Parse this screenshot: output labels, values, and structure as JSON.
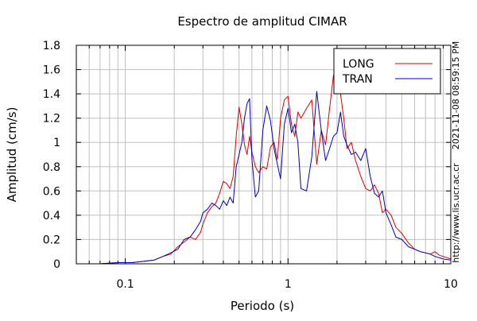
{
  "chart_data": {
    "type": "line",
    "title": "Espectro de amplitud CIMAR",
    "xlabel": "Periodo (s)",
    "ylabel": "Amplitud (cm/s)",
    "x_scale": "log",
    "xlim": [
      0.05,
      10
    ],
    "ylim": [
      0,
      1.8
    ],
    "x_ticks": [
      {
        "value": 0.1,
        "label": "0.1"
      },
      {
        "value": 1,
        "label": "1"
      },
      {
        "value": 10,
        "label": "10"
      }
    ],
    "y_ticks": [
      {
        "value": 0,
        "label": "0"
      },
      {
        "value": 0.2,
        "label": "0.2"
      },
      {
        "value": 0.4,
        "label": "0.4"
      },
      {
        "value": 0.6,
        "label": "0.6"
      },
      {
        "value": 0.8,
        "label": "0.8"
      },
      {
        "value": 1.0,
        "label": "1"
      },
      {
        "value": 1.2,
        "label": "1.2"
      },
      {
        "value": 1.4,
        "label": "1.4"
      },
      {
        "value": 1.6,
        "label": "1.6"
      },
      {
        "value": 1.8,
        "label": "1.8"
      }
    ],
    "grid": true,
    "legend_position": "top-right",
    "side_texts": [
      "2021-11-08 08:59:15 PM",
      "http://www.lis.ucr.ac.cr"
    ],
    "series": [
      {
        "name": "LONG",
        "color": "#e00000",
        "points": [
          [
            0.05,
            0.0
          ],
          [
            0.07,
            0.0
          ],
          [
            0.09,
            0.01
          ],
          [
            0.11,
            0.01
          ],
          [
            0.13,
            0.02
          ],
          [
            0.15,
            0.03
          ],
          [
            0.17,
            0.06
          ],
          [
            0.19,
            0.08
          ],
          [
            0.21,
            0.14
          ],
          [
            0.23,
            0.18
          ],
          [
            0.25,
            0.22
          ],
          [
            0.27,
            0.2
          ],
          [
            0.29,
            0.26
          ],
          [
            0.3,
            0.33
          ],
          [
            0.32,
            0.42
          ],
          [
            0.34,
            0.47
          ],
          [
            0.36,
            0.5
          ],
          [
            0.38,
            0.58
          ],
          [
            0.4,
            0.68
          ],
          [
            0.42,
            0.66
          ],
          [
            0.44,
            0.62
          ],
          [
            0.46,
            0.72
          ],
          [
            0.48,
            1.05
          ],
          [
            0.5,
            1.29
          ],
          [
            0.52,
            1.15
          ],
          [
            0.54,
            0.98
          ],
          [
            0.56,
            0.9
          ],
          [
            0.58,
            1.05
          ],
          [
            0.6,
            0.92
          ],
          [
            0.63,
            0.8
          ],
          [
            0.66,
            0.75
          ],
          [
            0.7,
            0.8
          ],
          [
            0.74,
            0.78
          ],
          [
            0.78,
            0.96
          ],
          [
            0.82,
            1.0
          ],
          [
            0.86,
            0.86
          ],
          [
            0.9,
            1.2
          ],
          [
            0.95,
            1.35
          ],
          [
            1.0,
            1.38
          ],
          [
            1.05,
            1.15
          ],
          [
            1.1,
            1.05
          ],
          [
            1.15,
            1.25
          ],
          [
            1.2,
            1.2
          ],
          [
            1.3,
            1.28
          ],
          [
            1.4,
            1.35
          ],
          [
            1.5,
            0.82
          ],
          [
            1.6,
            1.1
          ],
          [
            1.7,
            0.98
          ],
          [
            1.8,
            1.28
          ],
          [
            1.9,
            1.55
          ],
          [
            2.0,
            1.62
          ],
          [
            2.1,
            1.4
          ],
          [
            2.2,
            1.2
          ],
          [
            2.3,
            0.95
          ],
          [
            2.45,
            1.0
          ],
          [
            2.6,
            0.85
          ],
          [
            2.8,
            0.72
          ],
          [
            3.0,
            0.62
          ],
          [
            3.2,
            0.6
          ],
          [
            3.4,
            0.65
          ],
          [
            3.6,
            0.58
          ],
          [
            3.8,
            0.42
          ],
          [
            4.0,
            0.45
          ],
          [
            4.3,
            0.4
          ],
          [
            4.6,
            0.3
          ],
          [
            5.0,
            0.25
          ],
          [
            5.5,
            0.17
          ],
          [
            6.0,
            0.12
          ],
          [
            6.5,
            0.1
          ],
          [
            7.0,
            0.09
          ],
          [
            7.5,
            0.08
          ],
          [
            8.0,
            0.1
          ],
          [
            8.5,
            0.07
          ],
          [
            9.0,
            0.06
          ],
          [
            10.0,
            0.04
          ]
        ]
      },
      {
        "name": "TRAN",
        "color": "#0000c0",
        "points": [
          [
            0.05,
            0.0
          ],
          [
            0.07,
            0.0
          ],
          [
            0.09,
            0.01
          ],
          [
            0.11,
            0.01
          ],
          [
            0.13,
            0.02
          ],
          [
            0.15,
            0.03
          ],
          [
            0.17,
            0.06
          ],
          [
            0.19,
            0.09
          ],
          [
            0.21,
            0.12
          ],
          [
            0.23,
            0.2
          ],
          [
            0.25,
            0.22
          ],
          [
            0.27,
            0.28
          ],
          [
            0.29,
            0.35
          ],
          [
            0.3,
            0.42
          ],
          [
            0.32,
            0.45
          ],
          [
            0.34,
            0.5
          ],
          [
            0.36,
            0.48
          ],
          [
            0.38,
            0.45
          ],
          [
            0.4,
            0.52
          ],
          [
            0.42,
            0.48
          ],
          [
            0.44,
            0.55
          ],
          [
            0.46,
            0.5
          ],
          [
            0.48,
            0.8
          ],
          [
            0.5,
            0.9
          ],
          [
            0.52,
            1.0
          ],
          [
            0.54,
            1.2
          ],
          [
            0.56,
            1.32
          ],
          [
            0.58,
            1.36
          ],
          [
            0.6,
            0.86
          ],
          [
            0.63,
            0.55
          ],
          [
            0.66,
            0.6
          ],
          [
            0.7,
            1.1
          ],
          [
            0.74,
            1.3
          ],
          [
            0.78,
            1.18
          ],
          [
            0.82,
            0.95
          ],
          [
            0.86,
            0.82
          ],
          [
            0.9,
            0.7
          ],
          [
            0.95,
            1.15
          ],
          [
            1.0,
            1.28
          ],
          [
            1.05,
            1.08
          ],
          [
            1.1,
            1.15
          ],
          [
            1.15,
            1.0
          ],
          [
            1.2,
            0.62
          ],
          [
            1.3,
            0.6
          ],
          [
            1.4,
            0.88
          ],
          [
            1.5,
            1.42
          ],
          [
            1.6,
            1.1
          ],
          [
            1.7,
            0.85
          ],
          [
            1.8,
            0.95
          ],
          [
            1.9,
            1.05
          ],
          [
            2.0,
            1.08
          ],
          [
            2.1,
            1.25
          ],
          [
            2.2,
            1.05
          ],
          [
            2.3,
            0.98
          ],
          [
            2.45,
            0.9
          ],
          [
            2.6,
            0.92
          ],
          [
            2.8,
            0.85
          ],
          [
            3.0,
            0.95
          ],
          [
            3.2,
            0.72
          ],
          [
            3.4,
            0.58
          ],
          [
            3.6,
            0.55
          ],
          [
            3.8,
            0.6
          ],
          [
            4.0,
            0.42
          ],
          [
            4.3,
            0.32
          ],
          [
            4.6,
            0.22
          ],
          [
            5.0,
            0.2
          ],
          [
            5.5,
            0.14
          ],
          [
            6.0,
            0.12
          ],
          [
            6.5,
            0.1
          ],
          [
            7.0,
            0.09
          ],
          [
            7.5,
            0.08
          ],
          [
            8.0,
            0.06
          ],
          [
            8.5,
            0.05
          ],
          [
            9.0,
            0.04
          ],
          [
            10.0,
            0.03
          ]
        ]
      }
    ]
  }
}
